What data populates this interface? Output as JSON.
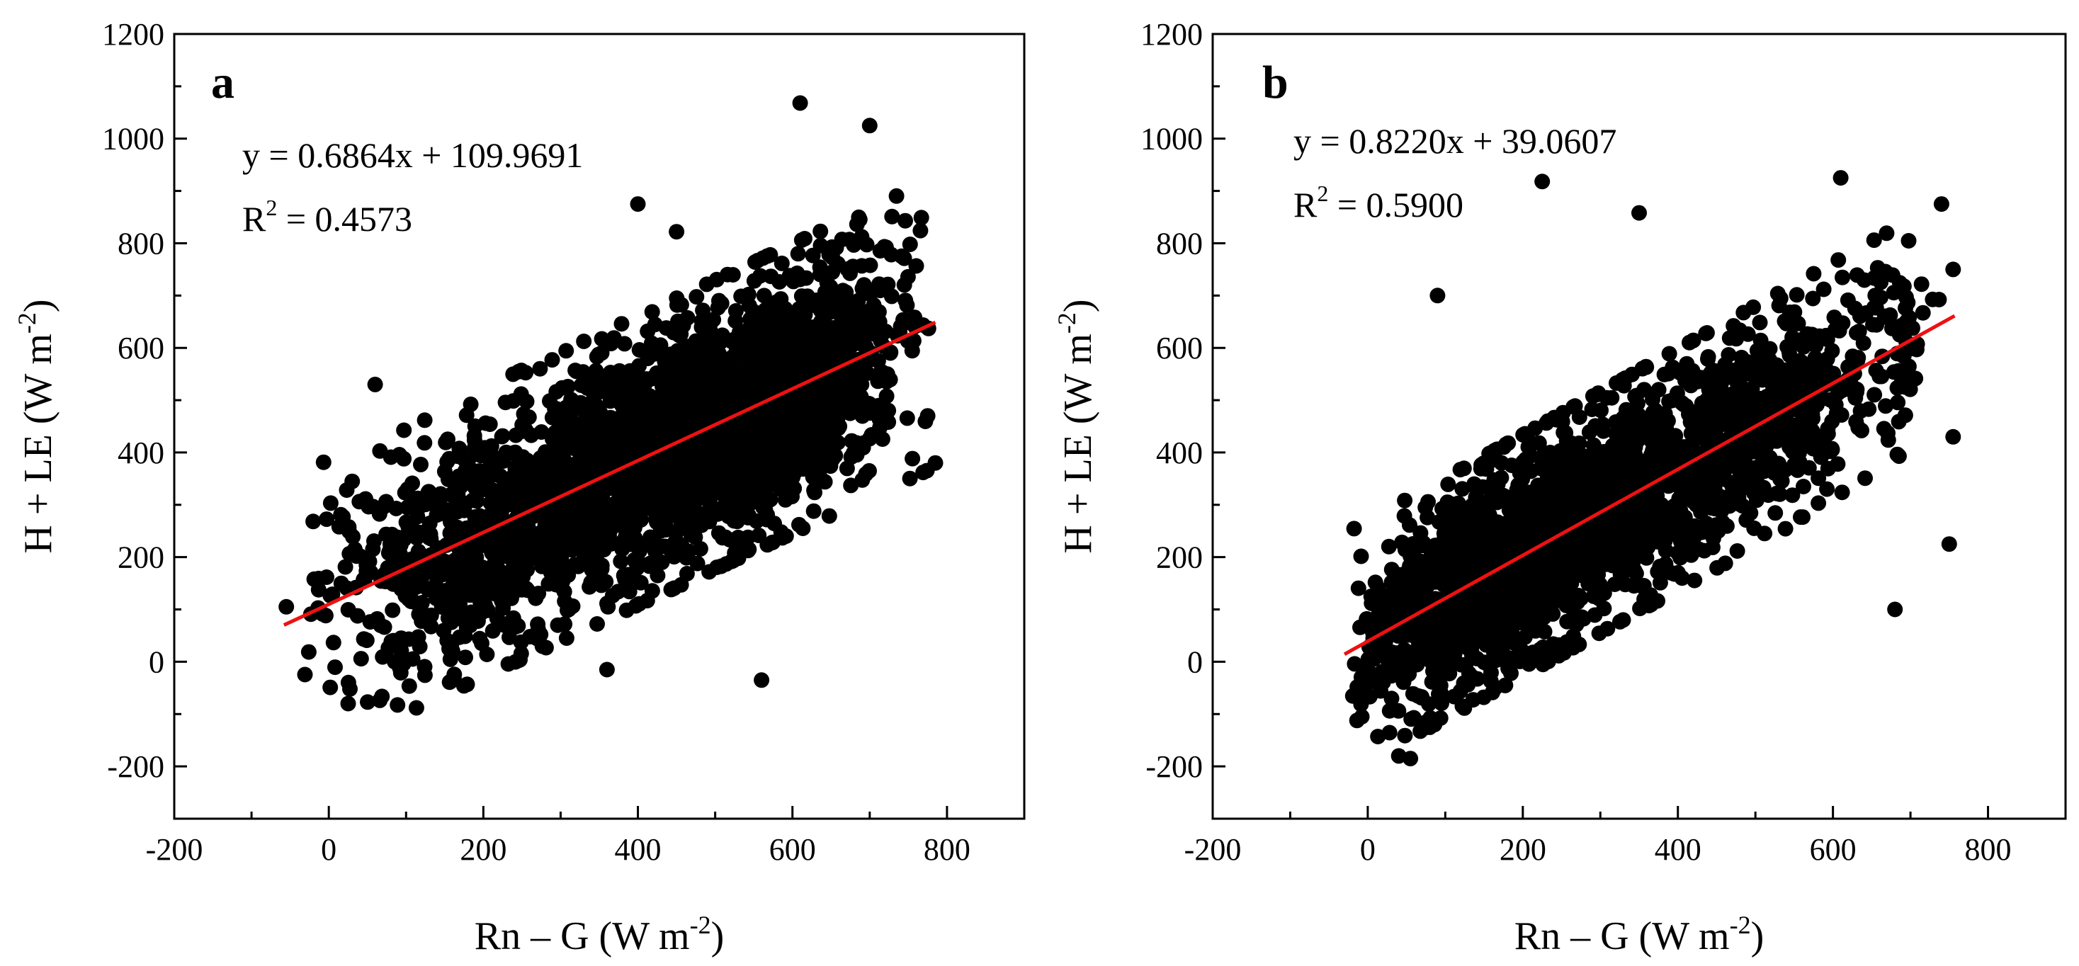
{
  "chart_data": [
    {
      "type": "scatter",
      "panel": "a",
      "equation": "y = 0.6864x + 109.9691",
      "r2_prefix": "R",
      "r2_sup": "2",
      "r2_value": " = 0.4573",
      "xlabel": {
        "main": "Rn – G (W m",
        "sup": "-2",
        "close": ")"
      },
      "ylabel": {
        "main": "H + LE (W m",
        "sup": "-2",
        "close": ")"
      },
      "xlim": [
        -200,
        900
      ],
      "ylim": [
        -300,
        1200
      ],
      "xticks": [
        -200,
        0,
        200,
        400,
        600,
        800
      ],
      "yticks": [
        -200,
        0,
        200,
        400,
        600,
        800,
        1000,
        1200
      ],
      "xtick_labels": [
        "-200",
        "0",
        "200",
        "400",
        "600",
        "800"
      ],
      "ytick_labels": [
        "-200",
        "0",
        "200",
        "400",
        "600",
        "800",
        "1000",
        "1200"
      ],
      "fit": {
        "slope": 0.6864,
        "intercept": 109.9691,
        "x_range": [
          -58,
          785
        ],
        "color": "#ee1111"
      },
      "marker_color": "#000000",
      "points": {
        "count": 2600,
        "x_range": [
          -58,
          785
        ],
        "x_mode": 560,
        "resid_sd": 120,
        "seed": 11,
        "notable": [
          [
            610,
            1068
          ],
          [
            700,
            1025
          ],
          [
            -55,
            105
          ],
          [
            25,
            -80
          ],
          [
            560,
            -35
          ],
          [
            360,
            -15
          ],
          [
            785,
            380
          ],
          [
            775,
            470
          ],
          [
            60,
            530
          ],
          [
            400,
            875
          ],
          [
            450,
            822
          ]
        ]
      }
    },
    {
      "type": "scatter",
      "panel": "b",
      "equation": "y = 0.8220x + 39.0607",
      "r2_prefix": "R",
      "r2_sup": "2",
      "r2_value": " = 0.5900",
      "xlabel": {
        "main": "Rn – G (W m",
        "sup": "-2",
        "close": ")"
      },
      "ylabel": {
        "main": "H + LE (W m",
        "sup": "-2",
        "close": ")"
      },
      "xlim": [
        -200,
        900
      ],
      "ylim": [
        -300,
        1200
      ],
      "xticks": [
        -200,
        0,
        200,
        400,
        600,
        800
      ],
      "yticks": [
        -200,
        0,
        200,
        400,
        600,
        800,
        1000,
        1200
      ],
      "xtick_labels": [
        "-200",
        "0",
        "200",
        "400",
        "600",
        "800"
      ],
      "ytick_labels": [
        "-200",
        "0",
        "200",
        "400",
        "600",
        "800",
        "1000",
        "1200"
      ],
      "fit": {
        "slope": 0.822,
        "intercept": 39.0607,
        "x_range": [
          -30,
          757
        ],
        "color": "#ee1111"
      },
      "marker_color": "#000000",
      "points": {
        "count": 2400,
        "x_range": [
          -30,
          757
        ],
        "x_mode": 150,
        "resid_sd": 100,
        "seed": 29,
        "notable": [
          [
            225,
            918
          ],
          [
            350,
            858
          ],
          [
            610,
            925
          ],
          [
            740,
            875
          ],
          [
            90,
            700
          ],
          [
            55,
            -185
          ],
          [
            40,
            -180
          ],
          [
            750,
            225
          ],
          [
            755,
            430
          ],
          [
            680,
            100
          ],
          [
            755,
            750
          ]
        ]
      }
    }
  ]
}
